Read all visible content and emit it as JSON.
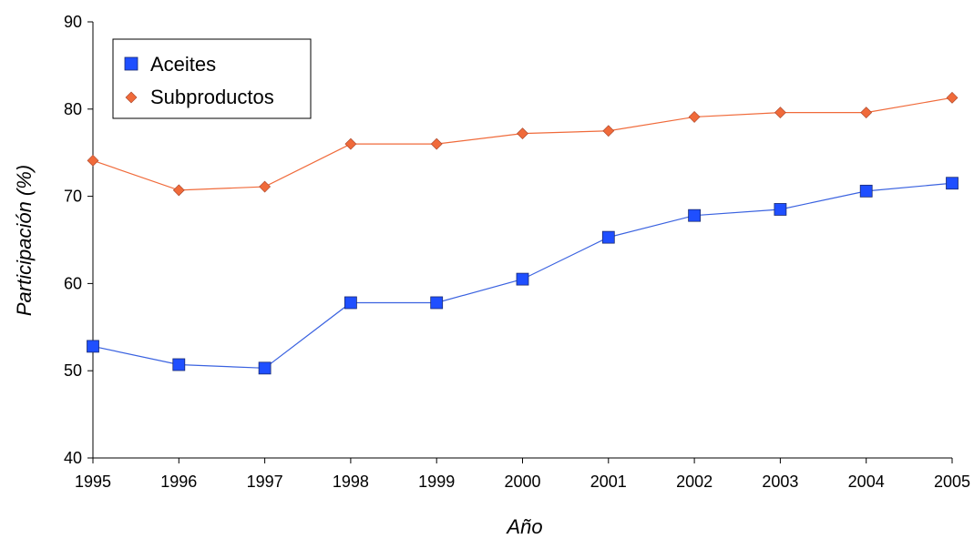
{
  "chart_data": {
    "type": "line",
    "title": "",
    "xlabel": "Año",
    "ylabel": "Participación (%)",
    "categories": [
      "1995",
      "1996",
      "1997",
      "1998",
      "1999",
      "2000",
      "2001",
      "2002",
      "2003",
      "2004",
      "2005"
    ],
    "ylim": [
      40,
      90
    ],
    "yticks": [
      40,
      50,
      60,
      70,
      80,
      90
    ],
    "grid": false,
    "legend_position": "top-left",
    "series": [
      {
        "name": "Aceites",
        "marker": "square",
        "marker_color": "#1f4fff",
        "line_color": "#3a62e0",
        "values": [
          52.8,
          50.7,
          50.3,
          57.8,
          57.8,
          60.5,
          65.3,
          67.8,
          68.5,
          70.6,
          71.5
        ]
      },
      {
        "name": "Subproductos",
        "marker": "diamond",
        "marker_color": "#f06a3a",
        "line_color": "#f06a3a",
        "values": [
          74.1,
          70.7,
          71.1,
          76.0,
          76.0,
          77.2,
          77.5,
          79.1,
          79.6,
          79.6,
          81.3
        ]
      }
    ]
  }
}
